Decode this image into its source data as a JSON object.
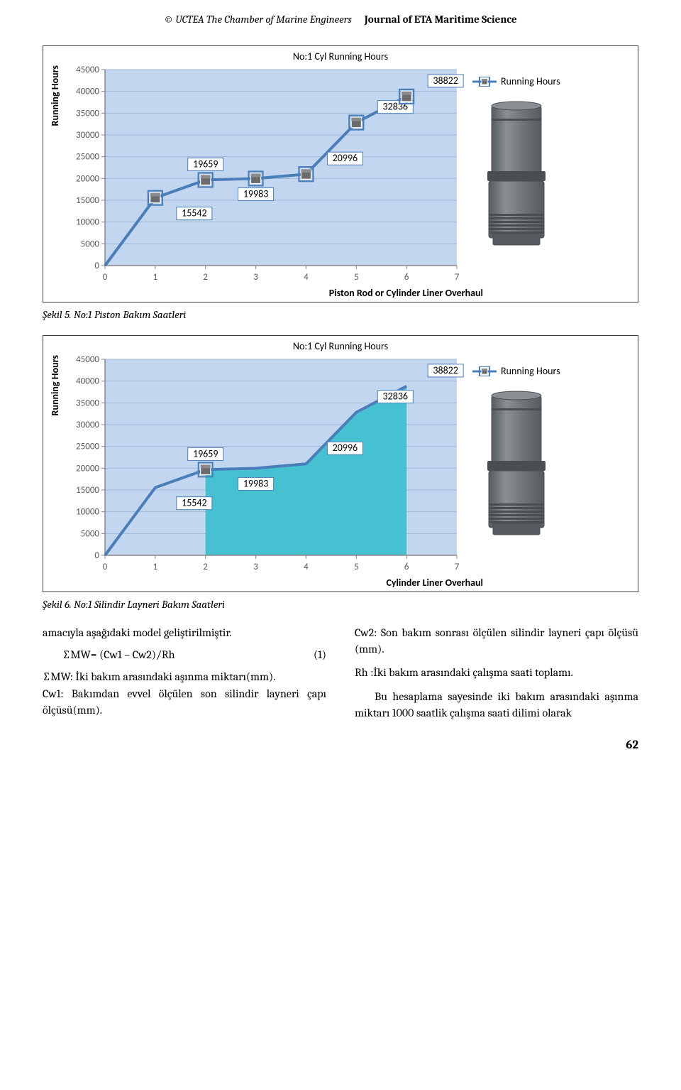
{
  "header": {
    "left": "© UCTEA The Chamber of Marine Engineers",
    "right": "Journal of ETA Maritime Science"
  },
  "chart": {
    "title": "No:1 Cyl Running Hours",
    "ylabel": "Running Hours",
    "legend_label": "Running Hours",
    "line_color": "#4a7ebb",
    "line_width": 4,
    "marker_size": 8,
    "plot_bg": "#c3d6ef",
    "area_fill": "#3fc0d0",
    "grid_color": "#a0b8d8",
    "axis_color": "#888888",
    "label_box_border": "#4a7ebb",
    "label_box_fill": "#ffffff",
    "xlim": [
      0,
      7
    ],
    "ylim": [
      0,
      45000
    ],
    "xtick_step": 1,
    "ytick_step": 5000,
    "x": [
      0,
      1,
      2,
      3,
      4,
      5,
      6
    ],
    "y": [
      0,
      15542,
      19659,
      19983,
      20996,
      32836,
      38822
    ],
    "show_label_from_index": 1,
    "label_dx": [
      0,
      30,
      0,
      0,
      30,
      30,
      30
    ],
    "label_dy": [
      0,
      22,
      -22,
      22,
      -22,
      -22,
      -22
    ]
  },
  "chart1": {
    "xlabel": "Piston Rod or Cylinder Liner Overhaul",
    "draw_markers_all": true,
    "fill_area": false
  },
  "chart2": {
    "xlabel": "Cylinder Liner Overhaul",
    "draw_markers_all": false,
    "marker_only_index": 2,
    "fill_area": true,
    "fill_from_index": 2,
    "fill_to_index": 6
  },
  "caption1": "Şekil 5. No:1 Piston Bakım Saatleri",
  "caption2": "Şekil 6. No:1 Silindir Layneri Bakım Saatleri",
  "text": {
    "p1": "amacıyla aşağıdaki model geliştirilmiştir.",
    "eq_lhs": "∑MW= (Cw1 – Cw2)/Rh",
    "eq_rhs": "(1)",
    "p2": "∑MW: İki bakım arasındaki aşınma miktarı(mm).",
    "p3": "Cw1: Bakımdan evvel ölçülen son silindir layneri çapı ölçüsü(mm).",
    "p4": "Cw2: Son bakım sonrası ölçülen silindir layneri çapı ölçüsü (mm).",
    "p5": "Rh :İki bakım arasındaki çalışma saati toplamı.",
    "p6": "Bu hesaplama sayesinde iki bakım arasındaki aşınma miktarı 1000 saatlik çalışma saati dilimi olarak"
  },
  "page_number": "62",
  "cylinder": {
    "body_color": "#6a6f73",
    "shade_color": "#575b5f",
    "ring_color": "#4a4e52",
    "highlight": "#8a8f94"
  }
}
